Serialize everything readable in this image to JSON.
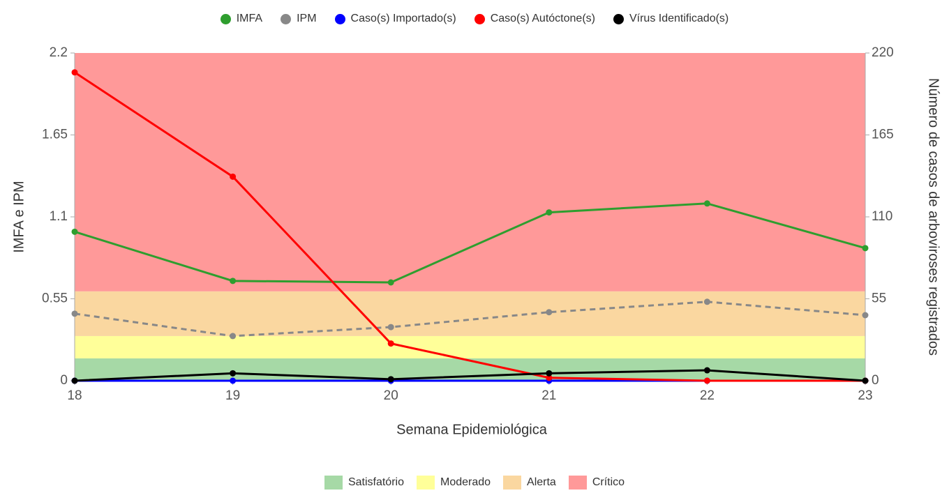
{
  "chart_data": {
    "type": "line",
    "x_label": "Semana Epidemiológica",
    "y_label": "IMFA e IPM",
    "y2_label": "Número de casos de arboviroses registrados",
    "x": [
      18,
      19,
      20,
      21,
      22,
      23
    ],
    "xlim": [
      18,
      23
    ],
    "xticks": [
      18,
      19,
      20,
      21,
      22,
      23
    ],
    "ylim": [
      0,
      2.2
    ],
    "yticks": [
      0,
      0.55,
      1.1,
      1.65,
      2.2
    ],
    "y2lim": [
      0,
      220
    ],
    "y2ticks": [
      0,
      55,
      110,
      165,
      220
    ],
    "bands": [
      {
        "name": "Satisfatório",
        "color": "#a6d9a6",
        "from": 0,
        "to": 0.15
      },
      {
        "name": "Moderado",
        "color": "#ffff99",
        "from": 0.15,
        "to": 0.3
      },
      {
        "name": "Alerta",
        "color": "#fad7a0",
        "from": 0.3,
        "to": 0.6
      },
      {
        "name": "Crítico",
        "color": "#ff9999",
        "from": 0.6,
        "to": 2.2
      }
    ],
    "series": [
      {
        "name": "IMFA",
        "color": "#2e9e2e",
        "values": [
          1.0,
          0.67,
          0.66,
          1.13,
          1.19,
          0.89
        ]
      },
      {
        "name": "IPM",
        "color": "#888888",
        "dashed": true,
        "values": [
          0.45,
          0.3,
          0.36,
          0.46,
          0.53,
          0.44
        ]
      },
      {
        "name": "Caso(s) Importado(s)",
        "color": "#0000ff",
        "axis": "y2",
        "values": [
          0,
          0,
          0,
          0,
          0,
          0
        ]
      },
      {
        "name": "Caso(s) Autóctone(s)",
        "color": "#ff0000",
        "axis": "y2",
        "values": [
          207,
          137,
          25,
          2,
          0,
          0
        ]
      },
      {
        "name": "Vírus Identificado(s)",
        "color": "#000000",
        "axis": "y2",
        "values": [
          0,
          5,
          1,
          5,
          7,
          0
        ]
      }
    ]
  }
}
